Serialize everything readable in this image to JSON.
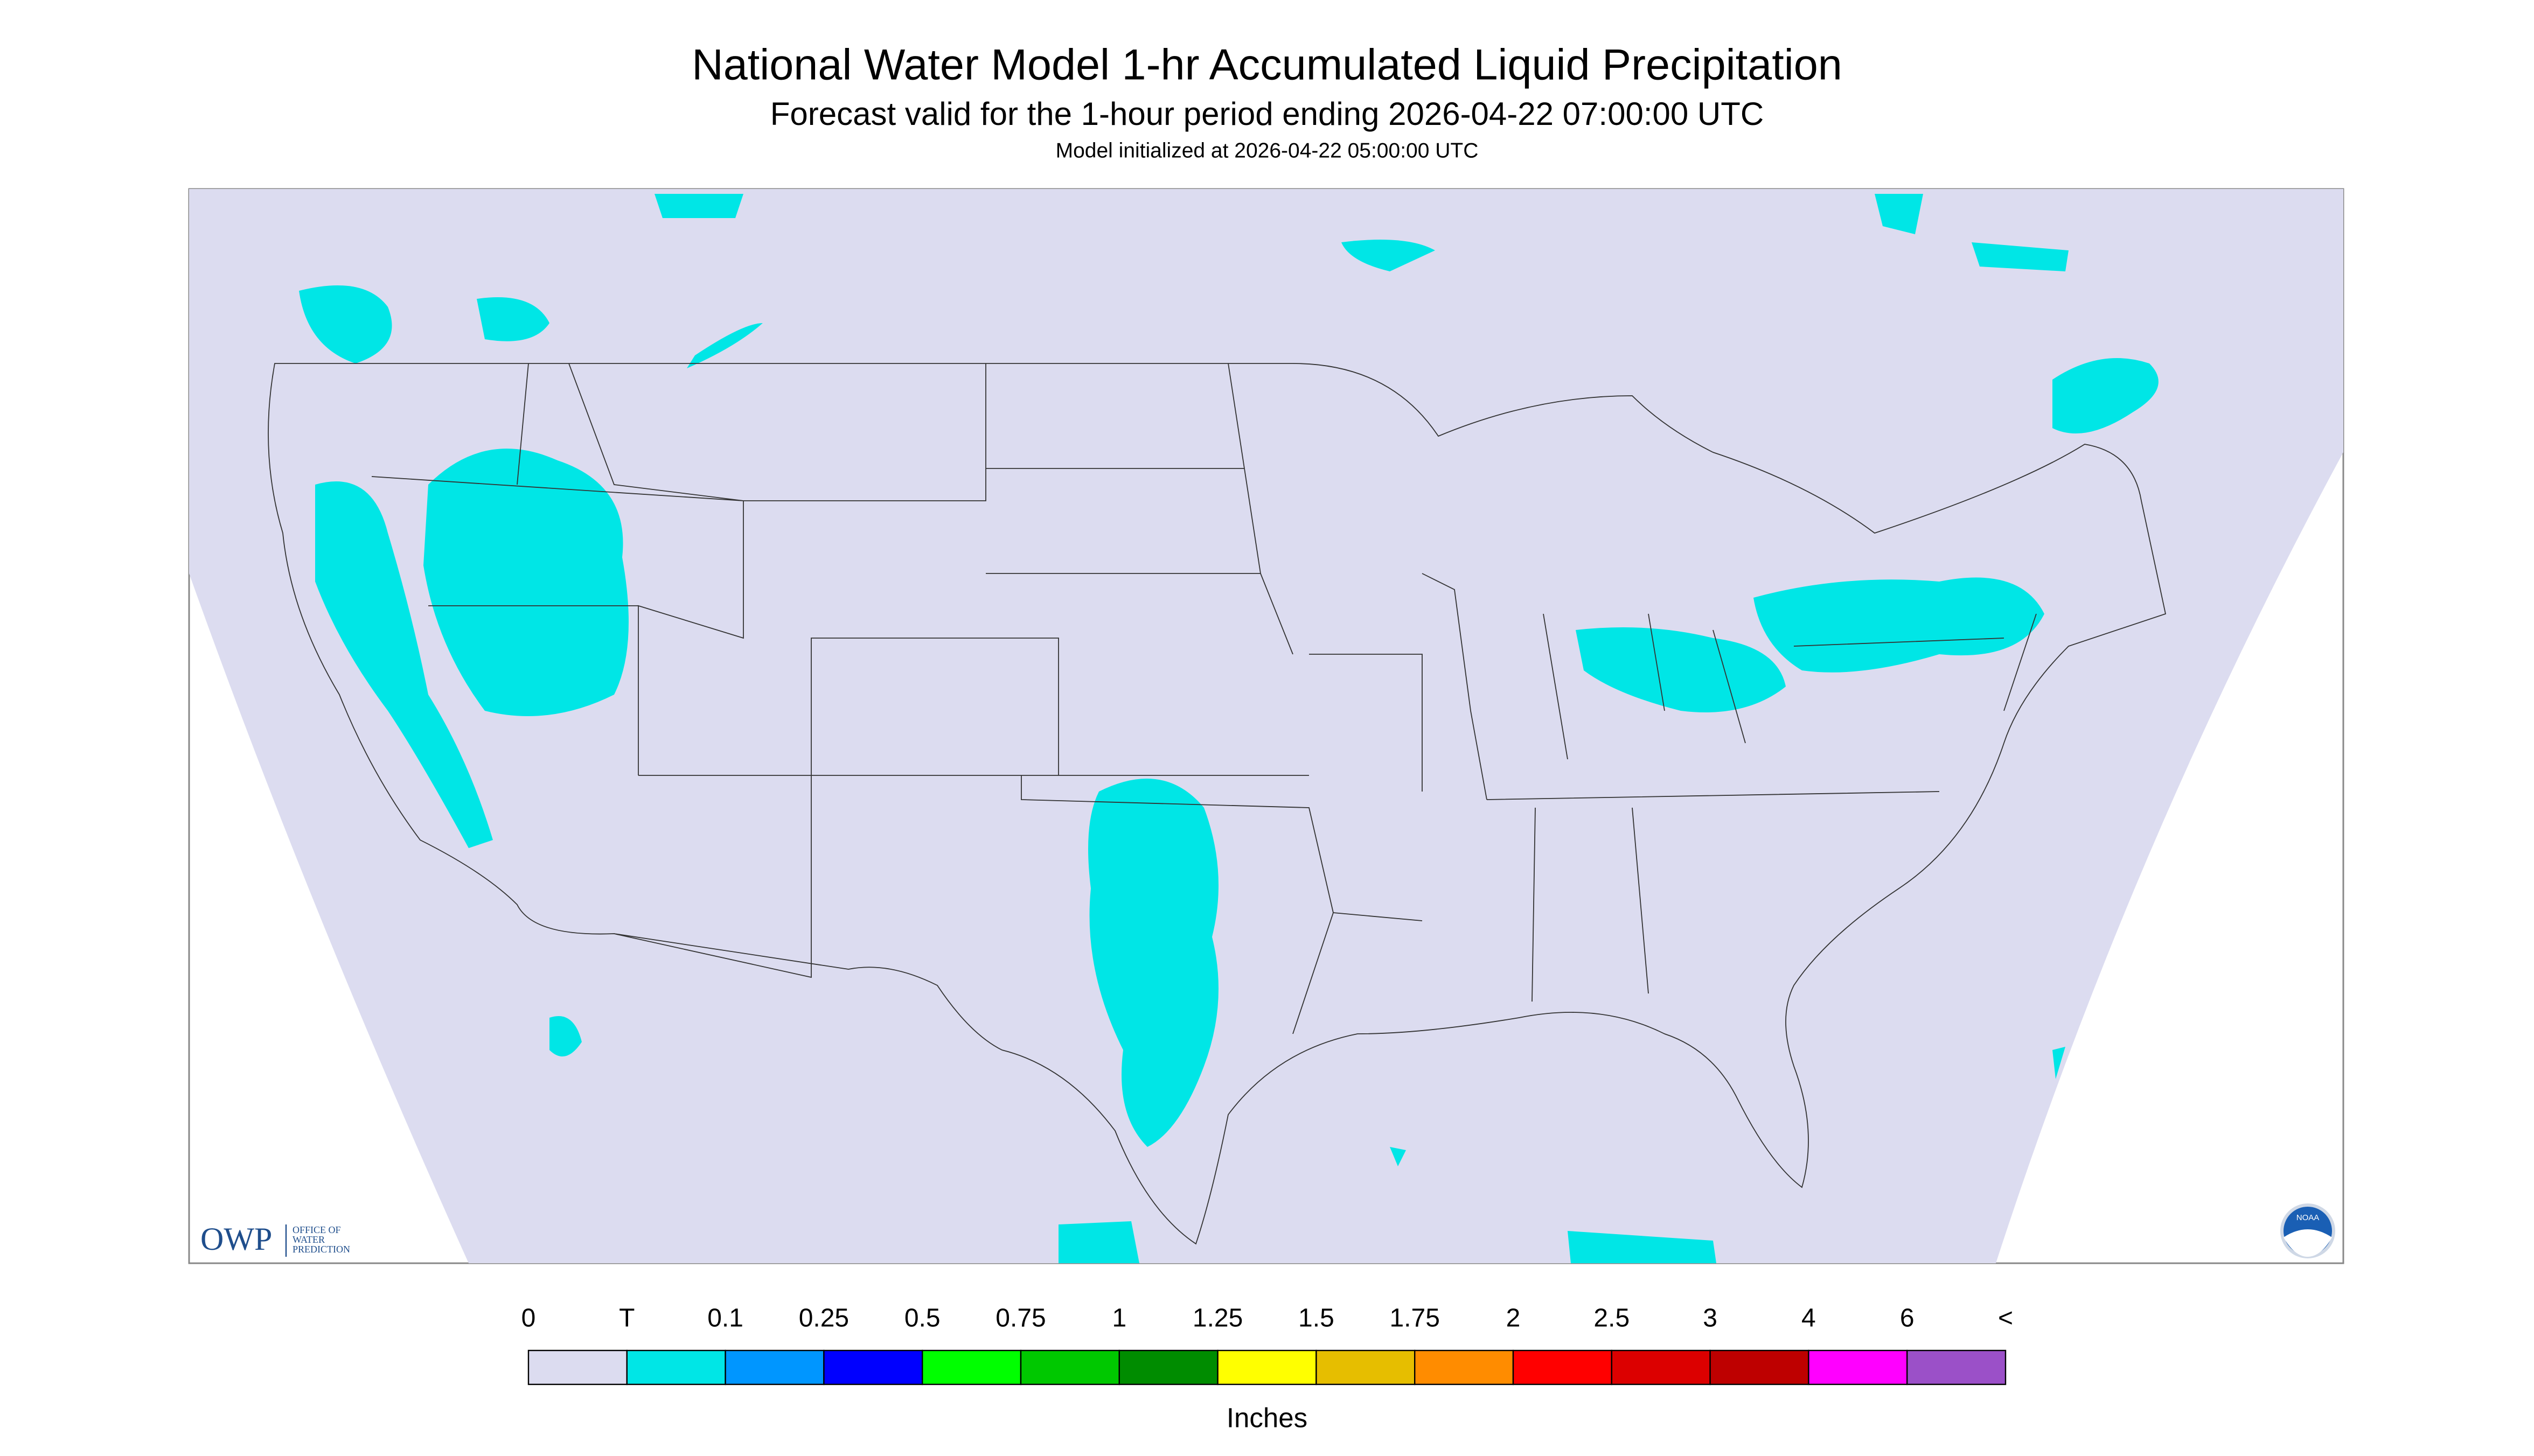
{
  "header": {
    "title": "National Water Model 1-hr Accumulated Liquid Precipitation",
    "subtitle": "Forecast valid for the 1-hour period ending 2026-04-22 07:00:00 UTC",
    "note": "Model initialized at 2026-04-22 05:00:00 UTC"
  },
  "logo": {
    "name": "OWP",
    "lines": [
      "OFFICE OF",
      "WATER",
      "PREDICTION"
    ],
    "badge": "NOAA"
  },
  "legend": {
    "labels": [
      "0",
      "T",
      "0.1",
      "0.25",
      "0.5",
      "0.75",
      "1",
      "1.25",
      "1.5",
      "1.75",
      "2",
      "2.5",
      "3",
      "4",
      "6",
      "<"
    ],
    "colors": [
      "#dcdcf0",
      "#00e6e6",
      "#0096ff",
      "#0000ff",
      "#00ff00",
      "#00c800",
      "#008c00",
      "#ffff00",
      "#e6be00",
      "#ff8c00",
      "#ff0000",
      "#dc0000",
      "#be0000",
      "#ff00ff",
      "#9b50c8"
    ],
    "unit": "Inches"
  }
}
